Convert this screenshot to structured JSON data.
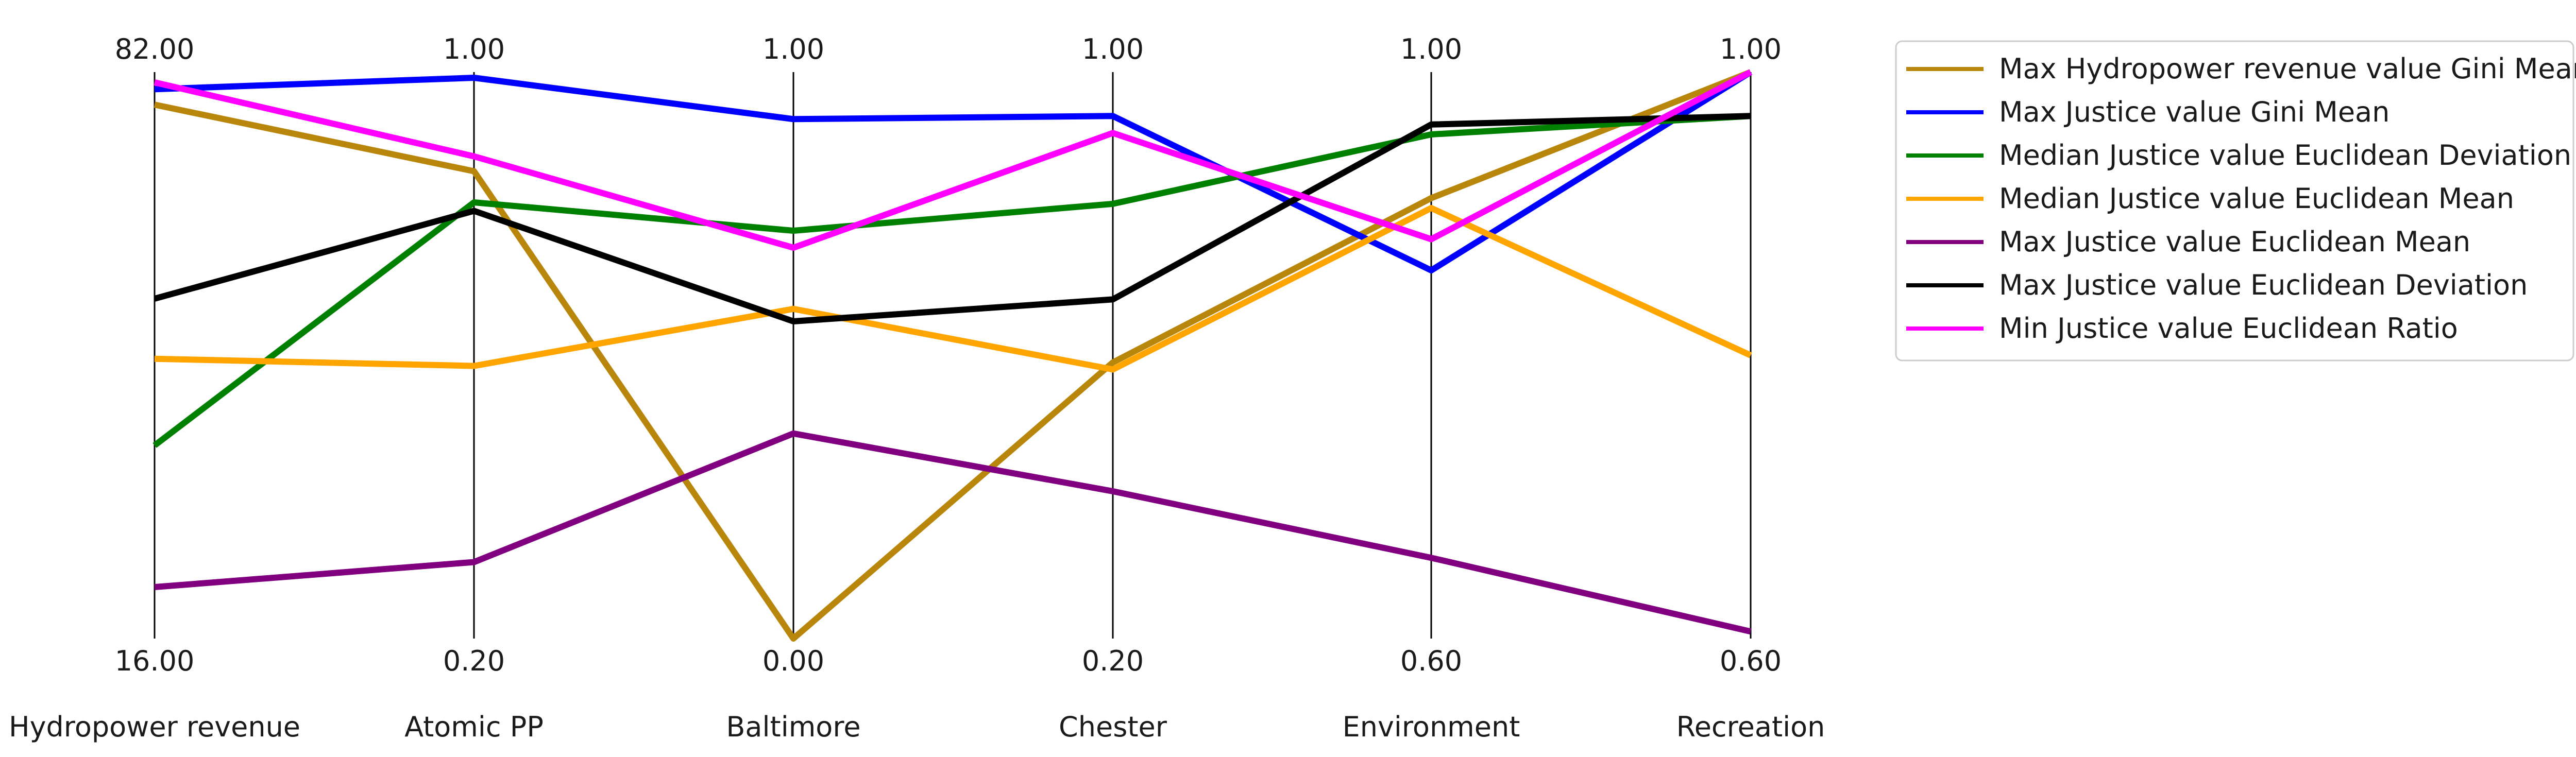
{
  "chart_data": {
    "type": "parallel_coordinates",
    "axes": [
      {
        "name": "Hydropower revenue",
        "top": "82.00",
        "bottom": "16.00",
        "range": [
          16.0,
          82.0
        ]
      },
      {
        "name": "Atomic PP",
        "top": "1.00",
        "bottom": "0.20",
        "range": [
          0.2,
          1.0
        ]
      },
      {
        "name": "Baltimore",
        "top": "1.00",
        "bottom": "0.00",
        "range": [
          0.0,
          1.0
        ]
      },
      {
        "name": "Chester",
        "top": "1.00",
        "bottom": "0.20",
        "range": [
          0.2,
          1.0
        ]
      },
      {
        "name": "Environment",
        "top": "1.00",
        "bottom": "0.60",
        "range": [
          0.6,
          1.0
        ]
      },
      {
        "name": "Recreation",
        "top": "1.00",
        "bottom": "0.60",
        "range": [
          0.6,
          1.0
        ]
      }
    ],
    "series": [
      {
        "name": "Max Hydropower revenue value Gini Mean",
        "color": "#b8860b",
        "values": [
          78.2,
          0.86,
          0.0,
          0.59,
          0.911,
          1.0
        ]
      },
      {
        "name": "Max Justice value Gini Mean",
        "color": "#0000ff",
        "values": [
          80.0,
          0.992,
          0.917,
          0.938,
          0.86,
          1.0
        ]
      },
      {
        "name": "Median Justice value Euclidean Deviation",
        "color": "#008000",
        "values": [
          38.5,
          0.816,
          0.72,
          0.814,
          0.956,
          0.969
        ]
      },
      {
        "name": "Median Justice value Euclidean Mean",
        "color": "#ffa500",
        "values": [
          48.6,
          0.585,
          0.582,
          0.58,
          0.904,
          0.8
        ]
      },
      {
        "name": "Max Justice value Euclidean Mean",
        "color": "#800080",
        "values": [
          22.0,
          0.308,
          0.362,
          0.408,
          0.657,
          0.605
        ]
      },
      {
        "name": "Max Justice value Euclidean Deviation",
        "color": "#000000",
        "values": [
          55.6,
          0.804,
          0.56,
          0.679,
          0.963,
          0.969
        ]
      },
      {
        "name": "Min Justice value Euclidean Ratio",
        "color": "#ff00ff",
        "values": [
          80.8,
          0.881,
          0.69,
          0.914,
          0.882,
          1.0
        ]
      }
    ],
    "legend_position": "top-right",
    "grid": false
  }
}
